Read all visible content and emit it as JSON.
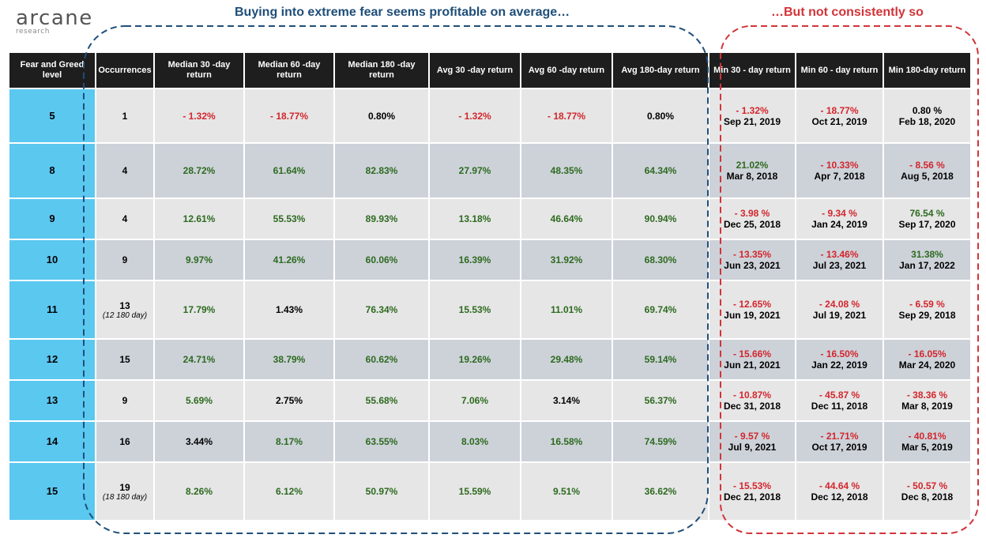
{
  "logo": {
    "name": "arcane",
    "sub": "research"
  },
  "headline_left": "Buying into extreme fear seems profitable on average…",
  "headline_right": "…But not consistently so",
  "headers": [
    "Fear and Greed level",
    "Occurrences",
    "Median 30 -day return",
    "Median 60 -day return",
    "Median 180 -day return",
    "Avg 30 -day return",
    "Avg 60 -day return",
    "Avg 180-day return",
    "Min 30 - day return",
    "Min 60 - day return",
    "Min 180-day return"
  ],
  "rows": [
    {
      "level": "5",
      "occ": "1",
      "occ_note": "",
      "med30": "- 1.32%",
      "med60": "- 18.77%",
      "med180": "0.80%",
      "avg30": "- 1.32%",
      "avg60": "- 18.77%",
      "avg180": "0.80%",
      "min30": "- 1.32%",
      "min30_date": "Sep 21, 2019",
      "min60": "- 18.77%",
      "min60_date": "Oct 21, 2019",
      "min180": "0.80 %",
      "min180_date": "Feb 18, 2020"
    },
    {
      "level": "8",
      "occ": "4",
      "occ_note": "",
      "med30": "28.72%",
      "med60": "61.64%",
      "med180": "82.83%",
      "avg30": "27.97%",
      "avg60": "48.35%",
      "avg180": "64.34%",
      "min30": "21.02%",
      "min30_date": "Mar 8, 2018",
      "min60": "- 10.33%",
      "min60_date": "Apr 7, 2018",
      "min180": "- 8.56 %",
      "min180_date": "Aug 5, 2018"
    },
    {
      "level": "9",
      "occ": "4",
      "occ_note": "",
      "med30": "12.61%",
      "med60": "55.53%",
      "med180": "89.93%",
      "avg30": "13.18%",
      "avg60": "46.64%",
      "avg180": "90.94%",
      "min30": "- 3.98 %",
      "min30_date": "Dec 25, 2018",
      "min60": "- 9.34 %",
      "min60_date": "Jan 24, 2019",
      "min180": "76.54 %",
      "min180_date": "Sep 17, 2020"
    },
    {
      "level": "10",
      "occ": "9",
      "occ_note": "",
      "med30": "9.97%",
      "med60": "41.26%",
      "med180": "60.06%",
      "avg30": "16.39%",
      "avg60": "31.92%",
      "avg180": "68.30%",
      "min30": "- 13.35%",
      "min30_date": "Jun 23, 2021",
      "min60": "- 13.46%",
      "min60_date": "Jul 23, 2021",
      "min180": "31.38%",
      "min180_date": "Jan 17, 2022"
    },
    {
      "level": "11",
      "occ": "13",
      "occ_note": "(12 180 day)",
      "med30": "17.79%",
      "med60": "1.43%",
      "med180": "76.34%",
      "avg30": "15.53%",
      "avg60": "11.01%",
      "avg180": "69.74%",
      "min30": "- 12.65%",
      "min30_date": "Jun 19, 2021",
      "min60": "- 24.08 %",
      "min60_date": "Jul 19, 2021",
      "min180": "- 6.59 %",
      "min180_date": "Sep 29, 2018"
    },
    {
      "level": "12",
      "occ": "15",
      "occ_note": "",
      "med30": "24.71%",
      "med60": "38.79%",
      "med180": "60.62%",
      "avg30": "19.26%",
      "avg60": "29.48%",
      "avg180": "59.14%",
      "min30": "- 15.66%",
      "min30_date": "Jun 21, 2021",
      "min60": "- 16.50%",
      "min60_date": "Jan 22, 2019",
      "min180": "- 16.05%",
      "min180_date": "Mar 24, 2020"
    },
    {
      "level": "13",
      "occ": "9",
      "occ_note": "",
      "med30": "5.69%",
      "med60": "2.75%",
      "med180": "55.68%",
      "avg30": "7.06%",
      "avg60": "3.14%",
      "avg180": "56.37%",
      "min30": "- 10.87%",
      "min30_date": "Dec 31, 2018",
      "min60": "- 45.87 %",
      "min60_date": "Dec 11, 2018",
      "min180": "- 38.36 %",
      "min180_date": "Mar 8, 2019"
    },
    {
      "level": "14",
      "occ": "16",
      "occ_note": "",
      "med30": "3.44%",
      "med60": "8.17%",
      "med180": "63.55%",
      "avg30": "8.03%",
      "avg60": "16.58%",
      "avg180": "74.59%",
      "min30": "- 9.57 %",
      "min30_date": "Jul 9, 2021",
      "min60": "- 21.71%",
      "min60_date": "Oct 17, 2019",
      "min180": "- 40.81%",
      "min180_date": "Mar 5, 2019"
    },
    {
      "level": "15",
      "occ": "19",
      "occ_note": "(18 180 day)",
      "med30": "8.26%",
      "med60": "6.12%",
      "med180": "50.97%",
      "avg30": "15.59%",
      "avg60": "9.51%",
      "avg180": "36.62%",
      "min30": "- 15.53%",
      "min30_date": "Dec 21, 2018",
      "min60": "- 44.64 %",
      "min60_date": "Dec 12, 2018",
      "min180": "- 50.57 %",
      "min180_date": "Dec 8, 2018"
    }
  ],
  "colors": {
    "header_bg": "#1e1e1e",
    "level_bg": "#5bc8f0",
    "row_light": "#e6e6e6",
    "row_dark": "#cdd2d9",
    "positive": "#2d6a1f",
    "negative": "#d3262d",
    "headline_blue": "#1f4e79",
    "headline_red": "#d13438"
  }
}
